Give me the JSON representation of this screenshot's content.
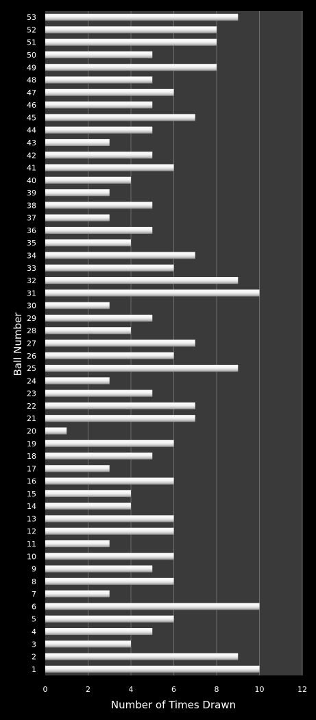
{
  "chart_data": {
    "type": "bar",
    "orientation": "horizontal",
    "xlabel": "Number of Times Drawn",
    "ylabel": "Ball Number",
    "xlim": [
      0,
      12
    ],
    "xticks": [
      0,
      2,
      4,
      6,
      8,
      10,
      12
    ],
    "grid": "vertical",
    "legend": "none",
    "colors": {
      "background": "#000000",
      "plot_area": "#3a3a3a",
      "bar": "#e8e8e8",
      "grid": "#6e6e6e",
      "text": "#ffffff"
    },
    "categories": [
      "1",
      "2",
      "3",
      "4",
      "5",
      "6",
      "7",
      "8",
      "9",
      "10",
      "11",
      "12",
      "13",
      "14",
      "15",
      "16",
      "17",
      "18",
      "19",
      "20",
      "21",
      "22",
      "23",
      "24",
      "25",
      "26",
      "27",
      "28",
      "29",
      "30",
      "31",
      "32",
      "33",
      "34",
      "35",
      "36",
      "37",
      "38",
      "39",
      "40",
      "41",
      "42",
      "43",
      "44",
      "45",
      "46",
      "47",
      "48",
      "49",
      "50",
      "51",
      "52",
      "53"
    ],
    "values": [
      10,
      9,
      4,
      5,
      6,
      10,
      3,
      6,
      5,
      6,
      3,
      6,
      6,
      4,
      4,
      6,
      3,
      5,
      6,
      1,
      7,
      7,
      5,
      3,
      9,
      6,
      7,
      4,
      5,
      3,
      10,
      9,
      6,
      7,
      4,
      5,
      3,
      5,
      3,
      4,
      6,
      5,
      3,
      5,
      7,
      5,
      6,
      5,
      8,
      5,
      8,
      8,
      9
    ]
  }
}
